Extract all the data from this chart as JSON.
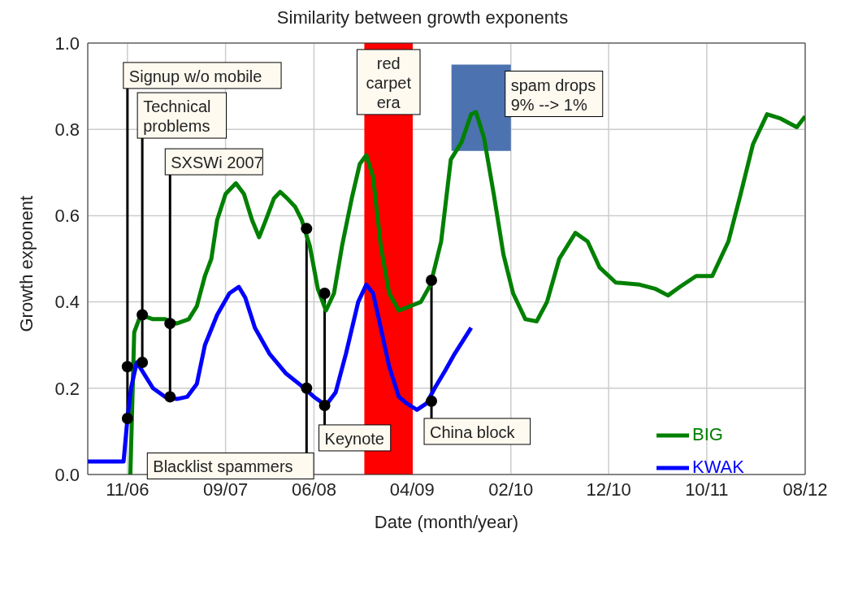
{
  "chart_data": {
    "type": "line",
    "title": "Similarity between growth exponents",
    "xlabel": "Date (month/year)",
    "ylabel": "Growth exponent",
    "xlim": [
      "2006-07-01",
      "2012-08-01"
    ],
    "xticks": [
      {
        "value": "2006-11-01",
        "label": "11/06"
      },
      {
        "value": "2007-09-01",
        "label": "09/07"
      },
      {
        "value": "2008-06-01",
        "label": "06/08"
      },
      {
        "value": "2009-04-01",
        "label": "04/09"
      },
      {
        "value": "2010-02-01",
        "label": "02/10"
      },
      {
        "value": "2010-12-01",
        "label": "12/10"
      },
      {
        "value": "2011-10-01",
        "label": "10/11"
      },
      {
        "value": "2012-08-01",
        "label": "08/12"
      }
    ],
    "ylim": [
      0,
      1
    ],
    "yticks": [
      {
        "value": 0,
        "label": "0.0"
      },
      0.2,
      0.4,
      0.6,
      0.8,
      {
        "value": 1,
        "label": "1.0"
      }
    ],
    "grid": true,
    "legend": "bottom right",
    "marker": "none",
    "series": [
      {
        "name": "BIG",
        "color": "#008000",
        "x": [
          "2006-11-10",
          "2006-11-22",
          "2006-12-12",
          "2007-01-19",
          "2007-02-26",
          "2007-04-03",
          "2007-05-10",
          "2007-06-04",
          "2007-06-29",
          "2007-07-19",
          "2007-08-06",
          "2007-09-01",
          "2007-10-03",
          "2007-10-28",
          "2007-11-22",
          "2007-12-14",
          "2008-01-04",
          "2008-01-29",
          "2008-02-17",
          "2008-03-10",
          "2008-04-04",
          "2008-04-24",
          "2008-05-19",
          "2008-06-13",
          "2008-07-08",
          "2008-08-02",
          "2008-08-27",
          "2008-09-26",
          "2008-10-21",
          "2008-11-10",
          "2008-12-01",
          "2008-12-25",
          "2009-01-20",
          "2009-02-19",
          "2009-03-26",
          "2009-04-28",
          "2009-05-28",
          "2009-06-30",
          "2009-07-30",
          "2009-09-01",
          "2009-10-01",
          "2009-10-16",
          "2009-11-10",
          "2009-12-10",
          "2010-01-09",
          "2010-02-08",
          "2010-03-18",
          "2010-04-22",
          "2010-05-24",
          "2010-07-01",
          "2010-08-20",
          "2010-09-27",
          "2010-11-03",
          "2010-12-23",
          "2011-03-07",
          "2011-04-26",
          "2011-06-03",
          "2011-07-10",
          "2011-08-29",
          "2011-10-18",
          "2011-12-07",
          "2012-01-14",
          "2012-02-21",
          "2012-04-05",
          "2012-05-17",
          "2012-07-06",
          "2012-08-01"
        ],
        "values": [
          0.0,
          0.33,
          0.37,
          0.36,
          0.36,
          0.35,
          0.36,
          0.39,
          0.46,
          0.5,
          0.59,
          0.65,
          0.675,
          0.65,
          0.59,
          0.55,
          0.59,
          0.64,
          0.655,
          0.64,
          0.62,
          0.59,
          0.53,
          0.43,
          0.38,
          0.42,
          0.53,
          0.64,
          0.72,
          0.74,
          0.69,
          0.53,
          0.42,
          0.38,
          0.39,
          0.4,
          0.44,
          0.54,
          0.73,
          0.77,
          0.835,
          0.84,
          0.78,
          0.65,
          0.51,
          0.42,
          0.36,
          0.355,
          0.4,
          0.5,
          0.56,
          0.54,
          0.48,
          0.445,
          0.44,
          0.43,
          0.415,
          0.435,
          0.46,
          0.46,
          0.54,
          0.65,
          0.765,
          0.835,
          0.825,
          0.805,
          0.83
        ]
      },
      {
        "name": "KWAK",
        "color": "#0000ff",
        "x": [
          "2006-07-01",
          "2006-10-20",
          "2006-11-01",
          "2006-11-12",
          "2006-11-30",
          "2006-12-17",
          "2007-01-19",
          "2007-02-26",
          "2007-04-03",
          "2007-05-05",
          "2007-06-04",
          "2007-06-29",
          "2007-08-06",
          "2007-09-13",
          "2007-10-12",
          "2007-11-01",
          "2007-12-01",
          "2008-01-15",
          "2008-03-05",
          "2008-04-24",
          "2008-06-01",
          "2008-07-08",
          "2008-08-07",
          "2008-09-08",
          "2008-10-16",
          "2008-11-10",
          "2008-12-01",
          "2008-12-25",
          "2009-01-20",
          "2009-02-19",
          "2009-03-15",
          "2009-04-16",
          "2009-05-16",
          "2009-06-10",
          "2009-07-12",
          "2009-08-11",
          "2009-10-01"
        ],
        "values": [
          0.03,
          0.03,
          0.13,
          0.2,
          0.26,
          0.24,
          0.2,
          0.18,
          0.175,
          0.18,
          0.21,
          0.3,
          0.37,
          0.42,
          0.435,
          0.41,
          0.34,
          0.28,
          0.235,
          0.205,
          0.18,
          0.16,
          0.19,
          0.28,
          0.4,
          0.44,
          0.42,
          0.34,
          0.25,
          0.18,
          0.165,
          0.15,
          0.165,
          0.2,
          0.24,
          0.28,
          0.34
        ]
      },
      {
        "type": "scatter",
        "marker": "circle",
        "color": "#000000",
        "x": [
          "2006-11-01",
          "2006-11-01",
          "2006-12-17",
          "2006-12-17",
          "2007-03-13",
          "2007-03-13",
          "2008-05-09",
          "2008-05-09",
          "2008-07-04",
          "2008-07-04",
          "2009-05-31",
          "2009-05-31"
        ],
        "values": [
          0.25,
          0.13,
          0.37,
          0.26,
          0.35,
          0.18,
          0.57,
          0.2,
          0.42,
          0.16,
          0.45,
          0.17
        ]
      }
    ],
    "bands": [
      {
        "axis": "x",
        "from": "2008-11-04",
        "to": "2009-04-03",
        "label": "red carpet era",
        "color": "#ff0000"
      },
      {
        "axis": "x",
        "from": "2009-08-01",
        "to": "2010-02-01",
        "label": "spam drops 9% --> 1%",
        "color": "#4c72b0"
      }
    ],
    "annotations": [
      {
        "text": "Signup w/o mobile",
        "x": "2006-11-01",
        "y": 0.12
      },
      {
        "text": "Technical problems",
        "x": "2006-12-17",
        "y": 0.26
      },
      {
        "text": "SXSWi 2007",
        "x": "2007-03-13",
        "y": 0.18
      },
      {
        "text": "Blacklist spammers",
        "x": "2008-05-09",
        "y": 0.57
      },
      {
        "text": "Keynote",
        "x": "2008-07-04",
        "y": 0.42
      },
      {
        "text": "China block",
        "x": "2009-05-31",
        "y": 0.45
      }
    ]
  }
}
